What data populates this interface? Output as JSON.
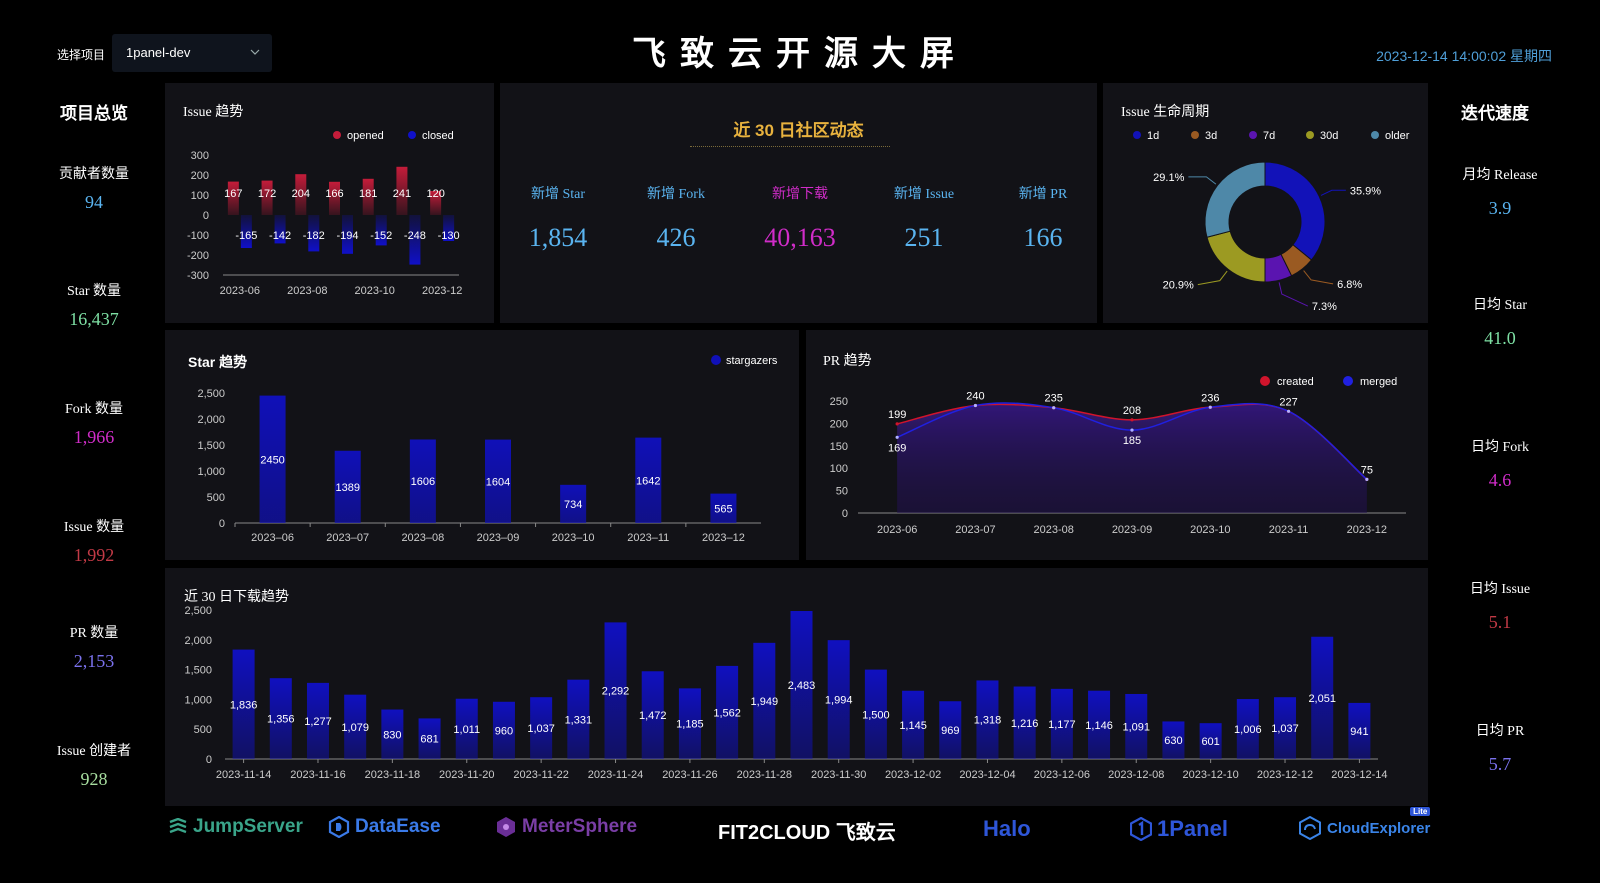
{
  "header": {
    "project_label": "选择项目",
    "project_value": "1panel-dev",
    "title": "飞致云开源大屏",
    "datetime": "2023-12-14 14:00:02 星期四"
  },
  "overview": {
    "title": "项目总览",
    "items": [
      {
        "label": "贡献者数量",
        "value": "94",
        "color": "#5ab4f0"
      },
      {
        "label": "Star 数量",
        "value": "16,437",
        "color": "#7ee0a4"
      },
      {
        "label": "Fork 数量",
        "value": "1,966",
        "color": "#d02cc8"
      },
      {
        "label": "Issue 数量",
        "value": "1,992",
        "color": "#c23a46"
      },
      {
        "label": "PR 数量",
        "value": "2,153",
        "color": "#7b72ee"
      },
      {
        "label": "Issue 创建者",
        "value": "928",
        "color": "#a8dfa0"
      }
    ]
  },
  "velocity": {
    "title": "迭代速度",
    "items": [
      {
        "label": "月均 Release",
        "value": "3.9",
        "color": "#5ab4f0"
      },
      {
        "label": "日均 Star",
        "value": "41.0",
        "color": "#7ee0a4"
      },
      {
        "label": "日均 Fork",
        "value": "4.6",
        "color": "#d02cc8"
      },
      {
        "label": "日均 Issue",
        "value": "5.1",
        "color": "#c23a46"
      },
      {
        "label": "日均 PR",
        "value": "5.7",
        "color": "#7b72ee"
      }
    ]
  },
  "community": {
    "title": "近 30 日社区动态",
    "items": [
      {
        "label": "新增 Star",
        "value": "1,854",
        "color": "#5ab4f0"
      },
      {
        "label": "新增 Fork",
        "value": "426",
        "color": "#5ab4f0"
      },
      {
        "label": "新增下载",
        "value": "40,163",
        "color": "#d02cc8"
      },
      {
        "label": "新增 Issue",
        "value": "251",
        "color": "#5ab4f0"
      },
      {
        "label": "新增 PR",
        "value": "166",
        "color": "#5ab4f0"
      }
    ]
  },
  "logos": {
    "jumpserver": "JumpServer",
    "dataease": "DataEase",
    "metersphere": "MeterSphere",
    "fit2cloud": "FIT2CLOUD 飞致云",
    "halo": "Halo",
    "onepanel": "1Panel",
    "cloudexplorer": "CloudExplorer",
    "cloudexplorer_badge": "Lite"
  },
  "chart_data": [
    {
      "id": "issue-trend",
      "type": "bar",
      "title": "Issue 趋势",
      "categories": [
        "2023-06",
        "2023-07",
        "2023-08",
        "2023-09",
        "2023-10",
        "2023-11",
        "2023-12"
      ],
      "tick_labels": [
        "2023-06",
        "2023-08",
        "2023-10",
        "2023-12"
      ],
      "series": [
        {
          "name": "opened",
          "values": [
            167,
            172,
            204,
            166,
            181,
            241,
            120
          ],
          "color": "#c41c3a"
        },
        {
          "name": "closed",
          "values": [
            -165,
            -142,
            -182,
            -194,
            -152,
            -248,
            -130
          ],
          "color": "#1010c8"
        }
      ],
      "ylim": [
        -300,
        300
      ],
      "yticks": [
        300,
        200,
        100,
        0,
        -100,
        -200,
        -300
      ],
      "legend": "top-right"
    },
    {
      "id": "issue-lifecycle",
      "type": "pie",
      "title": "Issue 生命周期",
      "labels": [
        "1d",
        "3d",
        "7d",
        "30d",
        "older"
      ],
      "values": [
        35.9,
        6.8,
        7.3,
        20.9,
        29.1
      ],
      "value_labels": [
        "35.9%",
        "6.8%",
        "7.3%",
        "20.9%",
        "29.1%"
      ],
      "colors": [
        "#1212b8",
        "#9a5a22",
        "#5a14b0",
        "#9c9a22",
        "#4e88a8"
      ],
      "legend": "top"
    },
    {
      "id": "star-trend",
      "type": "bar",
      "title": "Star 趋势",
      "categories": [
        "2023–06",
        "2023–07",
        "2023–08",
        "2023–09",
        "2023–10",
        "2023–11",
        "2023–12"
      ],
      "series": [
        {
          "name": "stargazers",
          "values": [
            2450,
            1389,
            1606,
            1604,
            734,
            1642,
            565
          ],
          "color": "#1010b8"
        }
      ],
      "ylim": [
        0,
        2500
      ],
      "yticks": [
        "0",
        "500",
        "1,000",
        "1,500",
        "2,000",
        "2,500"
      ],
      "legend": "top-right"
    },
    {
      "id": "pr-trend",
      "type": "area",
      "title": "PR 趋势",
      "categories": [
        "2023-06",
        "2023-07",
        "2023-08",
        "2023-09",
        "2023-10",
        "2023-11",
        "2023-12"
      ],
      "series": [
        {
          "name": "created",
          "values": [
            199,
            240,
            235,
            208,
            236,
            227,
            75
          ],
          "color": "#d0142c"
        },
        {
          "name": "merged",
          "values": [
            169,
            240,
            235,
            185,
            236,
            227,
            75
          ],
          "color": "#2020e0"
        }
      ],
      "ylim": [
        0,
        250
      ],
      "yticks": [
        "0",
        "50",
        "100",
        "150",
        "200",
        "250"
      ],
      "legend": "top-right"
    },
    {
      "id": "download-trend",
      "type": "bar",
      "title": "近 30 日下载趋势",
      "categories": [
        "2023-11-14",
        "2023-11-15",
        "2023-11-16",
        "2023-11-17",
        "2023-11-18",
        "2023-11-19",
        "2023-11-20",
        "2023-11-21",
        "2023-11-22",
        "2023-11-23",
        "2023-11-24",
        "2023-11-25",
        "2023-11-26",
        "2023-11-27",
        "2023-11-28",
        "2023-11-29",
        "2023-11-30",
        "2023-12-01",
        "2023-12-02",
        "2023-12-03",
        "2023-12-04",
        "2023-12-05",
        "2023-12-06",
        "2023-12-07",
        "2023-12-08",
        "2023-12-09",
        "2023-12-10",
        "2023-12-11",
        "2023-12-12",
        "2023-12-13",
        "2023-12-14"
      ],
      "tick_labels": [
        "2023-11-14",
        "2023-11-16",
        "2023-11-18",
        "2023-11-20",
        "2023-11-22",
        "2023-11-24",
        "2023-11-26",
        "2023-11-28",
        "2023-11-30",
        "2023-12-02",
        "2023-12-04",
        "2023-12-06",
        "2023-12-08",
        "2023-12-10",
        "2023-12-12",
        "2023-12-14"
      ],
      "series": [
        {
          "name": "",
          "values": [
            1836,
            1356,
            1277,
            1079,
            830,
            681,
            1011,
            960,
            1037,
            1331,
            2292,
            1472,
            1185,
            1562,
            1949,
            2483,
            1994,
            1500,
            1145,
            969,
            1318,
            1216,
            1177,
            1146,
            1091,
            630,
            601,
            1006,
            1037,
            2051,
            941
          ],
          "color": "#1010c0"
        }
      ],
      "ylim": [
        0,
        2500
      ],
      "yticks": [
        "0",
        "500",
        "1,000",
        "1,500",
        "2,000",
        "2,500"
      ]
    }
  ]
}
